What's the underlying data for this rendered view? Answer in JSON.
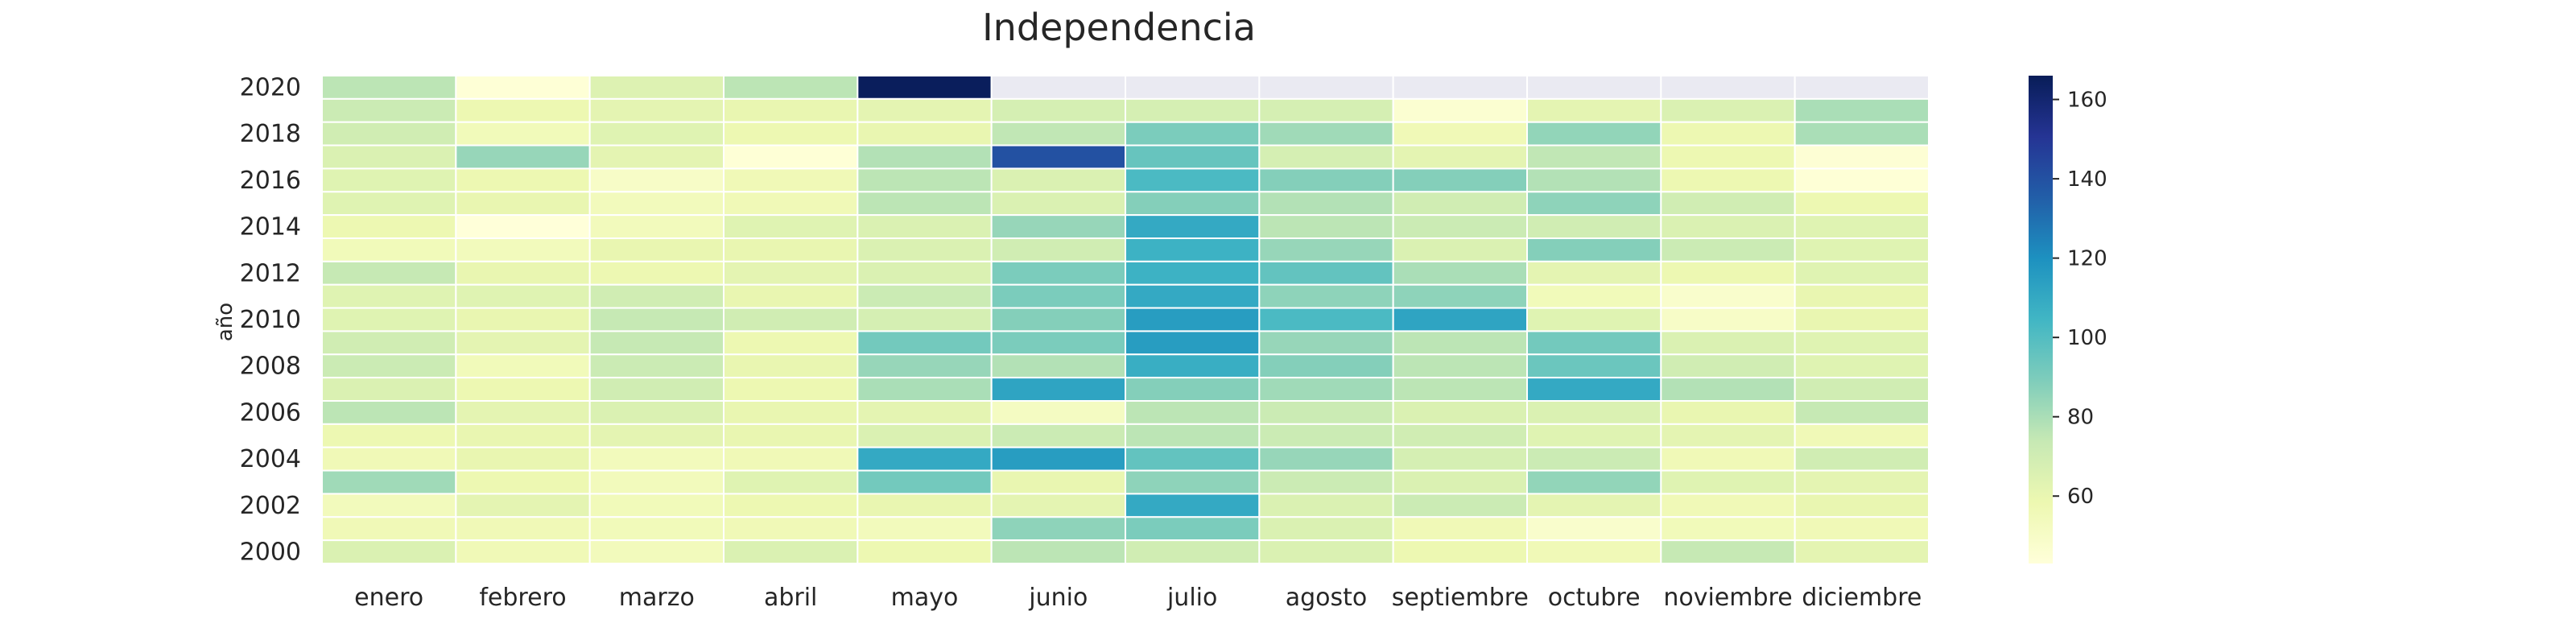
{
  "chart_data": {
    "type": "heatmap",
    "title": "Independencia",
    "ylabel": "año",
    "xlabel": "",
    "categories": [
      "enero",
      "febrero",
      "marzo",
      "abril",
      "mayo",
      "junio",
      "julio",
      "agosto",
      "septiembre",
      "octubre",
      "noviembre",
      "diciembre"
    ],
    "years": [
      2020,
      2019,
      2018,
      2017,
      2016,
      2015,
      2014,
      2013,
      2012,
      2011,
      2010,
      2009,
      2008,
      2007,
      2006,
      2005,
      2004,
      2003,
      2002,
      2001,
      2000
    ],
    "y_tick_labels": [
      "2020",
      "2018",
      "2016",
      "2014",
      "2012",
      "2010",
      "2008",
      "2006",
      "2004",
      "2002",
      "2000"
    ],
    "values": [
      [
        76,
        44,
        65,
        76,
        165,
        null,
        null,
        null,
        null,
        null,
        null,
        null
      ],
      [
        72,
        58,
        62,
        60,
        62,
        68,
        68,
        68,
        46,
        62,
        66,
        80
      ],
      [
        70,
        55,
        64,
        58,
        60,
        75,
        90,
        82,
        56,
        85,
        58,
        80
      ],
      [
        66,
        84,
        62,
        44,
        78,
        140,
        95,
        68,
        62,
        75,
        58,
        45
      ],
      [
        64,
        58,
        50,
        56,
        76,
        66,
        102,
        88,
        88,
        78,
        58,
        44
      ],
      [
        64,
        60,
        54,
        56,
        76,
        66,
        88,
        78,
        70,
        86,
        70,
        58
      ],
      [
        58,
        42,
        54,
        64,
        66,
        84,
        110,
        76,
        72,
        70,
        66,
        64
      ],
      [
        55,
        54,
        60,
        60,
        66,
        70,
        106,
        84,
        66,
        88,
        72,
        64
      ],
      [
        74,
        60,
        58,
        62,
        66,
        90,
        106,
        96,
        80,
        62,
        58,
        64
      ],
      [
        64,
        64,
        70,
        60,
        72,
        90,
        110,
        86,
        86,
        55,
        48,
        60
      ],
      [
        64,
        60,
        74,
        70,
        68,
        88,
        115,
        102,
        112,
        64,
        50,
        60
      ],
      [
        70,
        62,
        74,
        58,
        92,
        90,
        115,
        84,
        76,
        92,
        66,
        64
      ],
      [
        72,
        55,
        72,
        60,
        84,
        78,
        108,
        88,
        76,
        94,
        70,
        64
      ],
      [
        66,
        58,
        70,
        58,
        80,
        112,
        88,
        82,
        76,
        110,
        78,
        70
      ],
      [
        76,
        62,
        66,
        60,
        62,
        52,
        76,
        72,
        66,
        66,
        60,
        74
      ],
      [
        58,
        60,
        62,
        60,
        66,
        72,
        76,
        72,
        70,
        64,
        62,
        56
      ],
      [
        56,
        60,
        54,
        56,
        110,
        115,
        96,
        84,
        68,
        72,
        56,
        70
      ],
      [
        82,
        58,
        54,
        64,
        92,
        60,
        86,
        72,
        66,
        85,
        64,
        62
      ],
      [
        54,
        62,
        55,
        58,
        60,
        62,
        110,
        66,
        72,
        62,
        56,
        60
      ],
      [
        56,
        56,
        55,
        56,
        54,
        86,
        90,
        66,
        56,
        48,
        55,
        56
      ],
      [
        66,
        56,
        54,
        66,
        58,
        76,
        70,
        66,
        58,
        56,
        74,
        62
      ]
    ],
    "colorbar": {
      "min": 43,
      "max": 166,
      "ticks": [
        60,
        80,
        100,
        120,
        140,
        160
      ],
      "colormap": "YlGnBu",
      "missing_color": "#EAEAF2",
      "stops": [
        "#ffffd9",
        "#edf8b1",
        "#c7e9b4",
        "#7fcdbb",
        "#41b6c4",
        "#1d91c0",
        "#225ea8",
        "#253494",
        "#081d58"
      ]
    },
    "grid": false,
    "legend": "right colorbar"
  }
}
